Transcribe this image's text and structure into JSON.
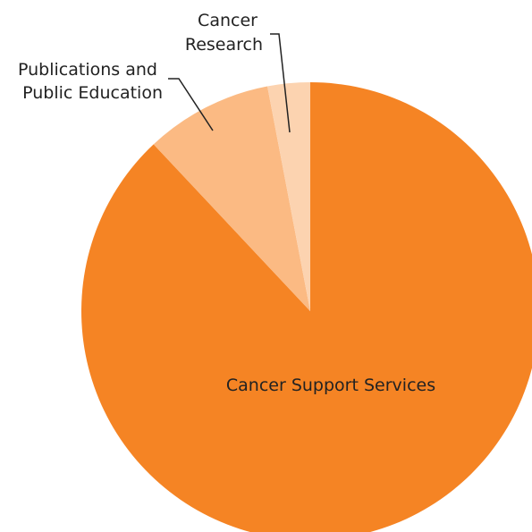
{
  "chart_data": {
    "type": "pie",
    "title": "",
    "start": "12 o'clock",
    "direction": "clockwise",
    "legend": "none",
    "slices": [
      {
        "label": "Cancer Support Services",
        "label_lines": [
          "Cancer Support Services"
        ],
        "value": 88,
        "color": "#f58424",
        "label_placement": "inside"
      },
      {
        "label": "Publications and Public Education",
        "label_lines": [
          "Publications and",
          "Public Education"
        ],
        "value": 9,
        "color": "#fbba83",
        "label_placement": "outside"
      },
      {
        "label": "Cancer Research",
        "label_lines": [
          "Cancer",
          "Research"
        ],
        "value": 3,
        "color": "#fcd3b0",
        "label_placement": "outside"
      }
    ]
  }
}
